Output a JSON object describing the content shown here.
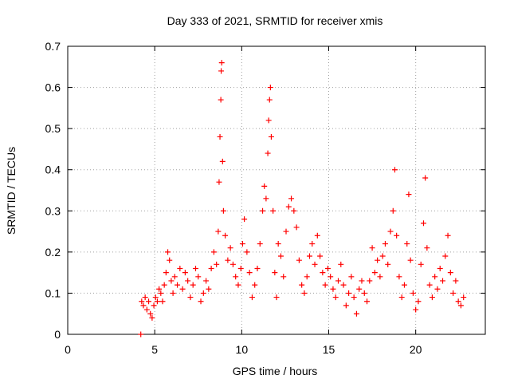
{
  "chart_data": {
    "type": "scatter",
    "title": "Day 333 of 2021, SRMTID for receiver xmis",
    "xlabel": "GPS time / hours",
    "ylabel": "SRMTID / TECUs",
    "xlim": [
      0,
      24
    ],
    "ylim": [
      0,
      0.7
    ],
    "xticks": [
      0,
      5,
      10,
      15,
      20
    ],
    "xtick_labels": [
      "0",
      "5",
      "10",
      "15",
      "20"
    ],
    "yticks": [
      0,
      0.1,
      0.2,
      0.3,
      0.4,
      0.5,
      0.6,
      0.7
    ],
    "ytick_labels": [
      "0",
      "0.1",
      "0.2",
      "0.3",
      "0.4",
      "0.5",
      "0.6",
      "0.7"
    ],
    "grid": true,
    "marker": "plus",
    "color": "#ff0000",
    "series": [
      {
        "name": "SRMTID",
        "points": [
          [
            4.2,
            0.0
          ],
          [
            4.25,
            0.08
          ],
          [
            4.35,
            0.07
          ],
          [
            4.45,
            0.09
          ],
          [
            4.55,
            0.06
          ],
          [
            4.65,
            0.08
          ],
          [
            4.75,
            0.05
          ],
          [
            4.85,
            0.04
          ],
          [
            4.95,
            0.07
          ],
          [
            5.05,
            0.09
          ],
          [
            5.15,
            0.08
          ],
          [
            5.25,
            0.11
          ],
          [
            5.35,
            0.1
          ],
          [
            5.45,
            0.08
          ],
          [
            5.55,
            0.12
          ],
          [
            5.65,
            0.15
          ],
          [
            5.75,
            0.2
          ],
          [
            5.85,
            0.18
          ],
          [
            5.95,
            0.13
          ],
          [
            6.05,
            0.1
          ],
          [
            6.15,
            0.14
          ],
          [
            6.3,
            0.12
          ],
          [
            6.45,
            0.16
          ],
          [
            6.6,
            0.11
          ],
          [
            6.75,
            0.15
          ],
          [
            6.9,
            0.13
          ],
          [
            7.05,
            0.09
          ],
          [
            7.2,
            0.12
          ],
          [
            7.35,
            0.16
          ],
          [
            7.5,
            0.14
          ],
          [
            7.65,
            0.08
          ],
          [
            7.8,
            0.1
          ],
          [
            7.95,
            0.13
          ],
          [
            8.1,
            0.11
          ],
          [
            8.25,
            0.16
          ],
          [
            8.4,
            0.2
          ],
          [
            8.55,
            0.17
          ],
          [
            8.65,
            0.25
          ],
          [
            8.7,
            0.37
          ],
          [
            8.75,
            0.48
          ],
          [
            8.8,
            0.57
          ],
          [
            8.82,
            0.64
          ],
          [
            8.85,
            0.66
          ],
          [
            8.9,
            0.42
          ],
          [
            8.95,
            0.3
          ],
          [
            9.05,
            0.24
          ],
          [
            9.2,
            0.18
          ],
          [
            9.35,
            0.21
          ],
          [
            9.5,
            0.17
          ],
          [
            9.65,
            0.14
          ],
          [
            9.8,
            0.12
          ],
          [
            9.95,
            0.16
          ],
          [
            10.05,
            0.22
          ],
          [
            10.15,
            0.28
          ],
          [
            10.3,
            0.2
          ],
          [
            10.45,
            0.15
          ],
          [
            10.6,
            0.09
          ],
          [
            10.75,
            0.12
          ],
          [
            10.9,
            0.16
          ],
          [
            11.05,
            0.22
          ],
          [
            11.2,
            0.3
          ],
          [
            11.3,
            0.36
          ],
          [
            11.4,
            0.33
          ],
          [
            11.5,
            0.44
          ],
          [
            11.55,
            0.52
          ],
          [
            11.6,
            0.57
          ],
          [
            11.65,
            0.6
          ],
          [
            11.7,
            0.48
          ],
          [
            11.8,
            0.3
          ],
          [
            11.9,
            0.15
          ],
          [
            12.0,
            0.09
          ],
          [
            12.1,
            0.22
          ],
          [
            12.25,
            0.19
          ],
          [
            12.4,
            0.14
          ],
          [
            12.55,
            0.25
          ],
          [
            12.7,
            0.31
          ],
          [
            12.85,
            0.33
          ],
          [
            13.0,
            0.3
          ],
          [
            13.15,
            0.26
          ],
          [
            13.3,
            0.18
          ],
          [
            13.45,
            0.12
          ],
          [
            13.6,
            0.1
          ],
          [
            13.75,
            0.14
          ],
          [
            13.9,
            0.19
          ],
          [
            14.05,
            0.22
          ],
          [
            14.2,
            0.17
          ],
          [
            14.35,
            0.24
          ],
          [
            14.5,
            0.19
          ],
          [
            14.65,
            0.15
          ],
          [
            14.8,
            0.12
          ],
          [
            14.95,
            0.16
          ],
          [
            15.1,
            0.14
          ],
          [
            15.25,
            0.11
          ],
          [
            15.4,
            0.09
          ],
          [
            15.55,
            0.13
          ],
          [
            15.7,
            0.17
          ],
          [
            15.85,
            0.12
          ],
          [
            16.0,
            0.07
          ],
          [
            16.15,
            0.1
          ],
          [
            16.3,
            0.14
          ],
          [
            16.45,
            0.09
          ],
          [
            16.6,
            0.05
          ],
          [
            16.75,
            0.11
          ],
          [
            16.9,
            0.13
          ],
          [
            17.05,
            0.1
          ],
          [
            17.2,
            0.08
          ],
          [
            17.35,
            0.13
          ],
          [
            17.5,
            0.21
          ],
          [
            17.65,
            0.15
          ],
          [
            17.8,
            0.18
          ],
          [
            17.95,
            0.14
          ],
          [
            18.1,
            0.19
          ],
          [
            18.25,
            0.22
          ],
          [
            18.4,
            0.17
          ],
          [
            18.55,
            0.25
          ],
          [
            18.7,
            0.3
          ],
          [
            18.8,
            0.4
          ],
          [
            18.9,
            0.24
          ],
          [
            19.05,
            0.14
          ],
          [
            19.2,
            0.09
          ],
          [
            19.35,
            0.12
          ],
          [
            19.5,
            0.22
          ],
          [
            19.6,
            0.34
          ],
          [
            19.7,
            0.18
          ],
          [
            19.85,
            0.1
          ],
          [
            20.0,
            0.06
          ],
          [
            20.15,
            0.08
          ],
          [
            20.3,
            0.17
          ],
          [
            20.45,
            0.27
          ],
          [
            20.55,
            0.38
          ],
          [
            20.65,
            0.21
          ],
          [
            20.8,
            0.12
          ],
          [
            20.95,
            0.09
          ],
          [
            21.1,
            0.14
          ],
          [
            21.25,
            0.11
          ],
          [
            21.4,
            0.16
          ],
          [
            21.55,
            0.13
          ],
          [
            21.7,
            0.19
          ],
          [
            21.85,
            0.24
          ],
          [
            22.0,
            0.15
          ],
          [
            22.15,
            0.1
          ],
          [
            22.3,
            0.13
          ],
          [
            22.45,
            0.08
          ],
          [
            22.6,
            0.07
          ],
          [
            22.75,
            0.09
          ]
        ]
      }
    ]
  }
}
